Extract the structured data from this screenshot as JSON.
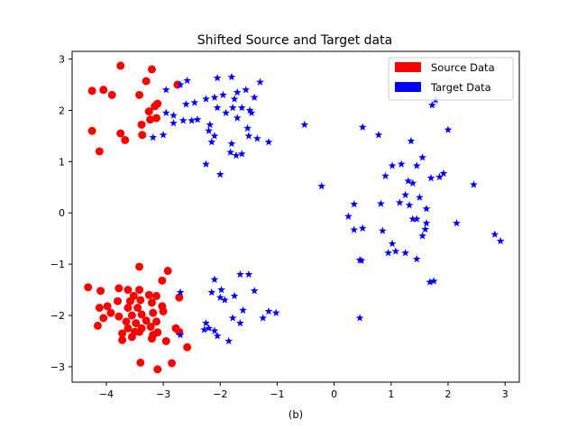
{
  "chart_data": {
    "type": "scatter",
    "title": "Shifted Source and Target data",
    "xlabel": "(b)",
    "ylabel": "",
    "xlim": [
      -4.6,
      3.25
    ],
    "ylim": [
      -3.3,
      3.15
    ],
    "xticks": [
      -4,
      -3,
      -2,
      -1,
      0,
      1,
      2,
      3
    ],
    "yticks": [
      -3,
      -2,
      -1,
      0,
      1,
      2,
      3
    ],
    "grid": false,
    "legend_position": "top-right",
    "series": [
      {
        "name": "Source Data",
        "color": "#ff0000",
        "marker": "circle",
        "points": [
          [
            -3.75,
            2.87
          ],
          [
            -3.2,
            2.8
          ],
          [
            -4.25,
            2.38
          ],
          [
            -4.05,
            2.4
          ],
          [
            -3.9,
            2.3
          ],
          [
            -3.42,
            2.3
          ],
          [
            -3.3,
            2.57
          ],
          [
            -3.15,
            2.08
          ],
          [
            -3.1,
            2.13
          ],
          [
            -2.75,
            2.5
          ],
          [
            -3.25,
            1.98
          ],
          [
            -3.23,
            1.82
          ],
          [
            -3.12,
            1.85
          ],
          [
            -3.38,
            1.72
          ],
          [
            -3.67,
            1.42
          ],
          [
            -3.75,
            1.55
          ],
          [
            -4.25,
            1.6
          ],
          [
            -3.37,
            1.52
          ],
          [
            -4.12,
            1.2
          ],
          [
            -3.42,
            -1.05
          ],
          [
            -2.92,
            -1.13
          ],
          [
            -3.02,
            -1.32
          ],
          [
            -4.32,
            -1.45
          ],
          [
            -4.1,
            -1.52
          ],
          [
            -3.78,
            -1.47
          ],
          [
            -3.62,
            -1.5
          ],
          [
            -3.42,
            -1.5
          ],
          [
            -3.52,
            -1.62
          ],
          [
            -3.25,
            -1.6
          ],
          [
            -3.12,
            -1.62
          ],
          [
            -2.72,
            -1.65
          ],
          [
            -3.8,
            -1.72
          ],
          [
            -3.58,
            -1.72
          ],
          [
            -3.4,
            -1.7
          ],
          [
            -3.2,
            -1.75
          ],
          [
            -4.12,
            -1.85
          ],
          [
            -3.98,
            -1.82
          ],
          [
            -3.62,
            -1.85
          ],
          [
            -3.45,
            -1.85
          ],
          [
            -3.02,
            -1.82
          ],
          [
            -3.92,
            -1.95
          ],
          [
            -3.78,
            -2.02
          ],
          [
            -3.55,
            -2.0
          ],
          [
            -3.38,
            -1.98
          ],
          [
            -3.18,
            -1.95
          ],
          [
            -3.0,
            -1.92
          ],
          [
            -4.05,
            -2.05
          ],
          [
            -3.65,
            -2.12
          ],
          [
            -3.48,
            -2.15
          ],
          [
            -3.3,
            -2.1
          ],
          [
            -3.12,
            -2.12
          ],
          [
            -4.15,
            -2.2
          ],
          [
            -3.62,
            -2.25
          ],
          [
            -3.5,
            -2.32
          ],
          [
            -3.38,
            -2.25
          ],
          [
            -3.22,
            -2.22
          ],
          [
            -2.78,
            -2.25
          ],
          [
            -3.72,
            -2.35
          ],
          [
            -3.55,
            -2.42
          ],
          [
            -3.42,
            -2.32
          ],
          [
            -3.18,
            -2.38
          ],
          [
            -3.1,
            -2.33
          ],
          [
            -2.72,
            -2.32
          ],
          [
            -3.72,
            -2.48
          ],
          [
            -3.2,
            -2.45
          ],
          [
            -2.95,
            -2.5
          ],
          [
            -2.58,
            -2.62
          ],
          [
            -3.4,
            -2.92
          ],
          [
            -2.85,
            -2.93
          ],
          [
            -3.1,
            -3.05
          ]
        ]
      },
      {
        "name": "Target Data",
        "color": "#0000ff",
        "marker": "star",
        "points": [
          [
            -2.05,
            2.63
          ],
          [
            -1.8,
            2.65
          ],
          [
            -2.7,
            2.5
          ],
          [
            -2.58,
            2.58
          ],
          [
            -2.95,
            2.4
          ],
          [
            -1.7,
            2.35
          ],
          [
            -1.55,
            2.4
          ],
          [
            -1.3,
            2.55
          ],
          [
            -2.25,
            2.22
          ],
          [
            -2.1,
            2.25
          ],
          [
            -1.95,
            2.3
          ],
          [
            -1.75,
            2.22
          ],
          [
            -1.4,
            2.25
          ],
          [
            -2.6,
            2.12
          ],
          [
            -2.45,
            2.15
          ],
          [
            -2.05,
            2.05
          ],
          [
            -1.9,
            1.95
          ],
          [
            -1.78,
            2.05
          ],
          [
            -1.62,
            2.05
          ],
          [
            -1.48,
            2.0
          ],
          [
            -1.45,
            1.95
          ],
          [
            -2.95,
            1.95
          ],
          [
            -2.82,
            1.9
          ],
          [
            -1.7,
            1.85
          ],
          [
            -2.5,
            1.8
          ],
          [
            -2.65,
            1.8
          ],
          [
            -2.4,
            1.82
          ],
          [
            -2.82,
            1.75
          ],
          [
            -2.18,
            1.72
          ],
          [
            -1.52,
            1.65
          ],
          [
            -3.18,
            1.47
          ],
          [
            -3.0,
            1.52
          ],
          [
            -2.2,
            1.6
          ],
          [
            -2.1,
            1.5
          ],
          [
            -1.5,
            1.5
          ],
          [
            -1.35,
            1.45
          ],
          [
            -2.15,
            1.38
          ],
          [
            -1.8,
            1.35
          ],
          [
            -1.15,
            1.38
          ],
          [
            -1.82,
            1.18
          ],
          [
            -1.72,
            1.12
          ],
          [
            -2.25,
            0.95
          ],
          [
            -2.0,
            0.75
          ],
          [
            -1.62,
            1.15
          ],
          [
            -0.52,
            1.72
          ],
          [
            0.5,
            1.67
          ],
          [
            0.78,
            1.52
          ],
          [
            1.78,
            2.2
          ],
          [
            1.72,
            2.1
          ],
          [
            1.35,
            1.4
          ],
          [
            2.0,
            1.62
          ],
          [
            1.55,
            1.08
          ],
          [
            1.02,
            0.92
          ],
          [
            1.18,
            0.95
          ],
          [
            1.45,
            0.92
          ],
          [
            1.7,
            0.68
          ],
          [
            1.85,
            0.7
          ],
          [
            1.92,
            0.77
          ],
          [
            1.3,
            0.62
          ],
          [
            1.38,
            0.58
          ],
          [
            0.9,
            0.72
          ],
          [
            2.45,
            0.55
          ],
          [
            -0.22,
            0.52
          ],
          [
            0.35,
            0.17
          ],
          [
            0.82,
            0.18
          ],
          [
            1.15,
            0.2
          ],
          [
            1.25,
            0.35
          ],
          [
            1.5,
            0.3
          ],
          [
            1.32,
            0.15
          ],
          [
            1.62,
            0.08
          ],
          [
            0.25,
            -0.07
          ],
          [
            1.38,
            -0.12
          ],
          [
            1.45,
            -0.12
          ],
          [
            1.62,
            -0.2
          ],
          [
            2.15,
            -0.2
          ],
          [
            0.35,
            -0.33
          ],
          [
            0.5,
            -0.3
          ],
          [
            0.85,
            -0.35
          ],
          [
            1.6,
            -0.32
          ],
          [
            1.55,
            -0.45
          ],
          [
            2.82,
            -0.42
          ],
          [
            2.92,
            -0.55
          ],
          [
            1.02,
            -0.6
          ],
          [
            1.08,
            -0.75
          ],
          [
            0.95,
            -0.78
          ],
          [
            1.25,
            -0.78
          ],
          [
            0.45,
            -0.92
          ],
          [
            0.48,
            -0.93
          ],
          [
            1.45,
            -0.9
          ],
          [
            1.68,
            -1.35
          ],
          [
            1.75,
            -1.33
          ],
          [
            -1.65,
            -1.2
          ],
          [
            -1.5,
            -1.2
          ],
          [
            -2.1,
            -1.3
          ],
          [
            -1.98,
            -1.5
          ],
          [
            -1.4,
            -1.52
          ],
          [
            -2.7,
            -1.55
          ],
          [
            -2.15,
            -1.55
          ],
          [
            -1.75,
            -1.62
          ],
          [
            -2.0,
            -1.65
          ],
          [
            -1.92,
            -1.7
          ],
          [
            -1.6,
            -1.9
          ],
          [
            -1.15,
            -1.92
          ],
          [
            -1.02,
            -1.95
          ],
          [
            -1.78,
            -2.05
          ],
          [
            -1.25,
            -2.05
          ],
          [
            -2.25,
            -2.15
          ],
          [
            -1.65,
            -2.15
          ],
          [
            -2.2,
            -2.25
          ],
          [
            -2.1,
            -2.3
          ],
          [
            -2.28,
            -2.28
          ],
          [
            -2.7,
            -2.38
          ],
          [
            -2.05,
            -2.4
          ],
          [
            -1.85,
            -2.5
          ],
          [
            0.45,
            -2.05
          ]
        ]
      }
    ]
  }
}
